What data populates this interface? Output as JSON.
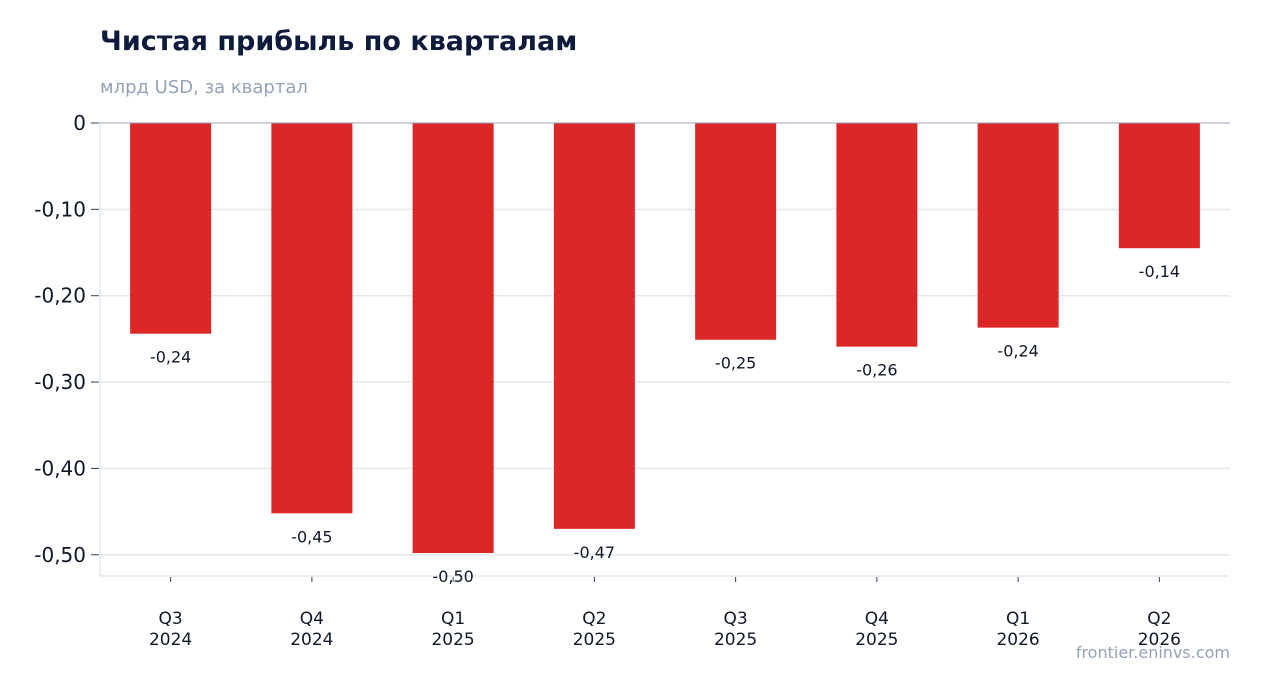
{
  "header": {
    "title": "Чистая прибыль по кварталам",
    "subtitle": "млрд USD, за квартал"
  },
  "footer": {
    "source": "frontier.eninvs.com"
  },
  "colors": {
    "bar": "#dd2626",
    "grid": "#e2e8f0",
    "zero_line": "#94a3b8"
  },
  "chart_data": {
    "type": "bar",
    "title": "Чистая прибыль по кварталам",
    "subtitle": "млрд USD, за квартал",
    "categories": [
      [
        "Q3",
        "2024"
      ],
      [
        "Q4",
        "2024"
      ],
      [
        "Q1",
        "2025"
      ],
      [
        "Q2",
        "2025"
      ],
      [
        "Q3",
        "2025"
      ],
      [
        "Q4",
        "2025"
      ],
      [
        "Q1",
        "2026"
      ],
      [
        "Q2",
        "2026"
      ]
    ],
    "values": [
      -0.244,
      -0.452,
      -0.498,
      -0.47,
      -0.251,
      -0.259,
      -0.237,
      -0.145
    ],
    "value_labels": [
      "-0,24",
      "-0,45",
      "-0,50",
      "-0,47",
      "-0,25",
      "-0,26",
      "-0,24",
      "-0,14"
    ],
    "yticks": [
      0,
      -0.1,
      -0.2,
      -0.3,
      -0.4,
      -0.5
    ],
    "ytick_labels": [
      "0",
      "-0,10",
      "-0,20",
      "-0,30",
      "-0,40",
      "-0,50"
    ],
    "ylim": [
      -0.525,
      0
    ],
    "grid": true,
    "legend": "none"
  }
}
